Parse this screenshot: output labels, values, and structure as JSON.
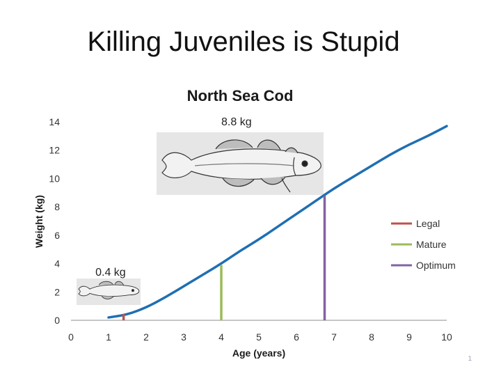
{
  "slide": {
    "title": "Killing Juveniles is Stupid",
    "number": "1"
  },
  "fish_icon": "cod-fish-illustration",
  "chart_data": {
    "type": "line",
    "title": "North Sea Cod",
    "xlabel": "Age (years)",
    "ylabel": "Weight (kg)",
    "xlim": [
      0,
      10
    ],
    "ylim": [
      0,
      14
    ],
    "x_ticks": [
      "0",
      "1",
      "2",
      "3",
      "4",
      "5",
      "6",
      "7",
      "8",
      "9",
      "10"
    ],
    "y_ticks": [
      "0",
      "2",
      "4",
      "6",
      "8",
      "10",
      "12",
      "14"
    ],
    "grid": false,
    "legend_position": "right",
    "series": [
      {
        "color": "#1f6fb2",
        "x": [
          1,
          1.5,
          2,
          2.5,
          3,
          3.5,
          4,
          4.5,
          5,
          5.5,
          6,
          6.5,
          7,
          7.5,
          8,
          8.5,
          9,
          9.5,
          10
        ],
        "y": [
          0.2,
          0.4,
          0.9,
          1.6,
          2.4,
          3.2,
          4.0,
          4.9,
          5.7,
          6.6,
          7.5,
          8.4,
          9.3,
          10.1,
          10.9,
          11.7,
          12.4,
          13.0,
          13.7
        ]
      }
    ],
    "markers": [
      {
        "name": "Legal",
        "x": 1.4,
        "y": 0.45,
        "color": "#c0504d"
      },
      {
        "name": "Mature",
        "x": 4.0,
        "y": 3.9,
        "color": "#9bbb59"
      },
      {
        "name": "Optimum",
        "x": 6.75,
        "y": 8.8,
        "color": "#8064a2"
      }
    ],
    "annotations": [
      {
        "text": "8.8 kg",
        "x": 4.0,
        "y": 14.0
      },
      {
        "text": "0.4 kg",
        "x": 0.65,
        "y": 3.4
      }
    ]
  }
}
